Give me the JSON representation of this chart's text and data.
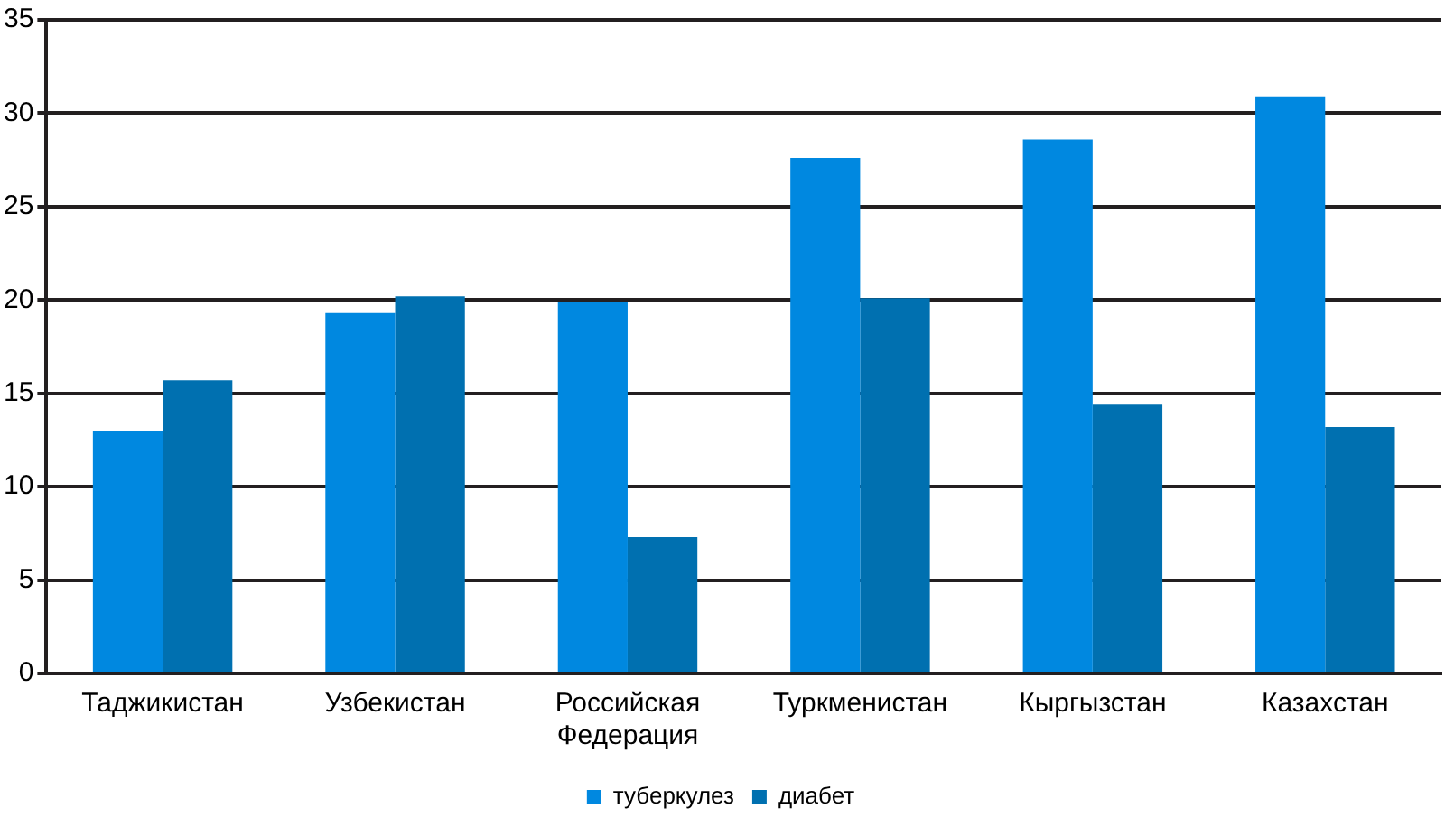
{
  "chart_data": {
    "type": "bar",
    "categories": [
      "Таджикистан",
      "Узбекистан",
      "Российская Федерация",
      "Туркменистан",
      "Кыргызстан",
      "Казахстан"
    ],
    "series": [
      {
        "name": "туберкулез",
        "color": "#0088e0",
        "values": [
          13.0,
          19.3,
          19.9,
          27.6,
          28.6,
          30.9
        ]
      },
      {
        "name": "диабет",
        "color": "#0070b0",
        "values": [
          15.7,
          20.2,
          7.3,
          20.1,
          14.4,
          13.2
        ]
      }
    ],
    "ylim": [
      0,
      35
    ],
    "yticks": [
      0,
      5,
      10,
      15,
      20,
      25,
      30,
      35
    ],
    "grid": "y",
    "legend": "bottom"
  }
}
